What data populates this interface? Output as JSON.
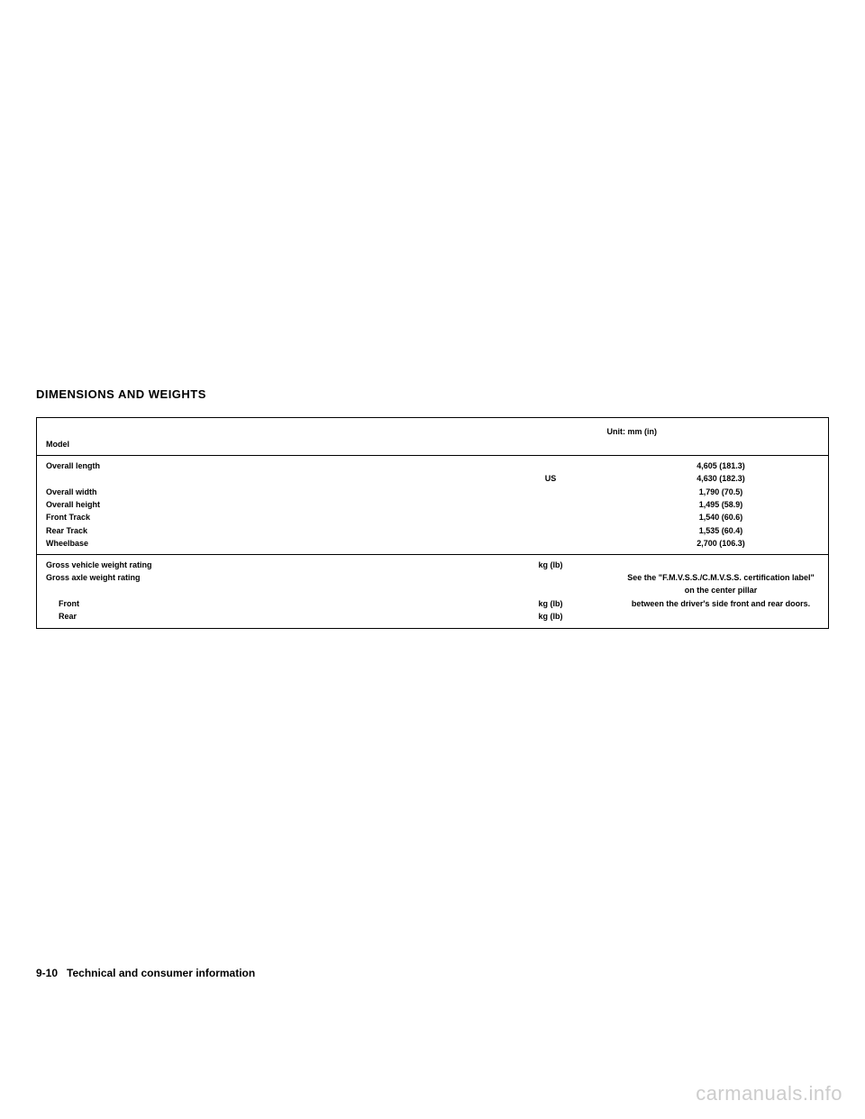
{
  "section_title": "DIMENSIONS AND WEIGHTS",
  "header": {
    "unit_label": "Unit: mm (in)",
    "model_label": "Model"
  },
  "dimensions": {
    "rows": [
      {
        "label": "Overall length",
        "mid": "",
        "val": "4,605 (181.3)"
      },
      {
        "label": "",
        "mid": "US",
        "val": "4,630 (182.3)"
      },
      {
        "label": "Overall width",
        "mid": "",
        "val": "1,790 (70.5)"
      },
      {
        "label": "Overall height",
        "mid": "",
        "val": "1,495 (58.9)"
      },
      {
        "label": "Front Track",
        "mid": "",
        "val": "1,540 (60.6)"
      },
      {
        "label": "Rear Track",
        "mid": "",
        "val": "1,535 (60.4)"
      },
      {
        "label": "Wheelbase",
        "mid": "",
        "val": "2,700 (106.3)"
      }
    ]
  },
  "weights": {
    "gvwr_label": "Gross vehicle weight rating",
    "gvwr_unit": "kg (lb)",
    "gawr_label": "Gross axle weight rating",
    "front_label": "Front",
    "front_unit": "kg (lb)",
    "rear_label": "Rear",
    "rear_unit": "kg (lb)",
    "note_line1": "See the \"F.M.V.S.S./C.M.V.S.S. certification label\" on the center pillar",
    "note_line2": "between the driver's side front and rear doors."
  },
  "footer": {
    "page_num": "9-10",
    "section_name": "Technical and consumer information"
  },
  "watermark": "carmanuals.info"
}
